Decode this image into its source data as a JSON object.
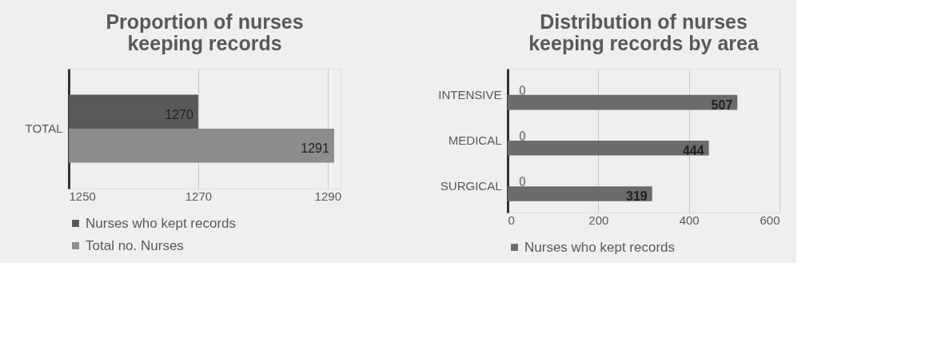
{
  "chart_data": [
    {
      "type": "bar",
      "orientation": "horizontal",
      "title": "Proportion of nurses keeping records",
      "categories": [
        "TOTAL"
      ],
      "series": [
        {
          "name": "Nurses who kept records",
          "color": "#595959",
          "values": [
            1270
          ]
        },
        {
          "name": "Total no. Nurses",
          "color": "#8c8c8c",
          "values": [
            1291
          ]
        }
      ],
      "xlim": [
        1250,
        1292
      ],
      "xticks": [
        1250,
        1270,
        1290
      ],
      "grid": "x",
      "data_labels": true,
      "legend": "bottom"
    },
    {
      "type": "bar",
      "orientation": "horizontal",
      "title": "Distribution of nurses keeping records by area",
      "categories": [
        "INTENSIVE",
        "MEDICAL",
        "SURGICAL"
      ],
      "series": [
        {
          "color": "#8a8a8a",
          "values": [
            0,
            0,
            0
          ]
        },
        {
          "name": "Nurses who kept records",
          "color": "#6b6b6b",
          "values": [
            507,
            444,
            319
          ]
        }
      ],
      "xlim": [
        0,
        600
      ],
      "xticks": [
        0,
        200,
        400,
        600
      ],
      "grid": "x",
      "data_labels": true,
      "legend": "bottom"
    }
  ]
}
